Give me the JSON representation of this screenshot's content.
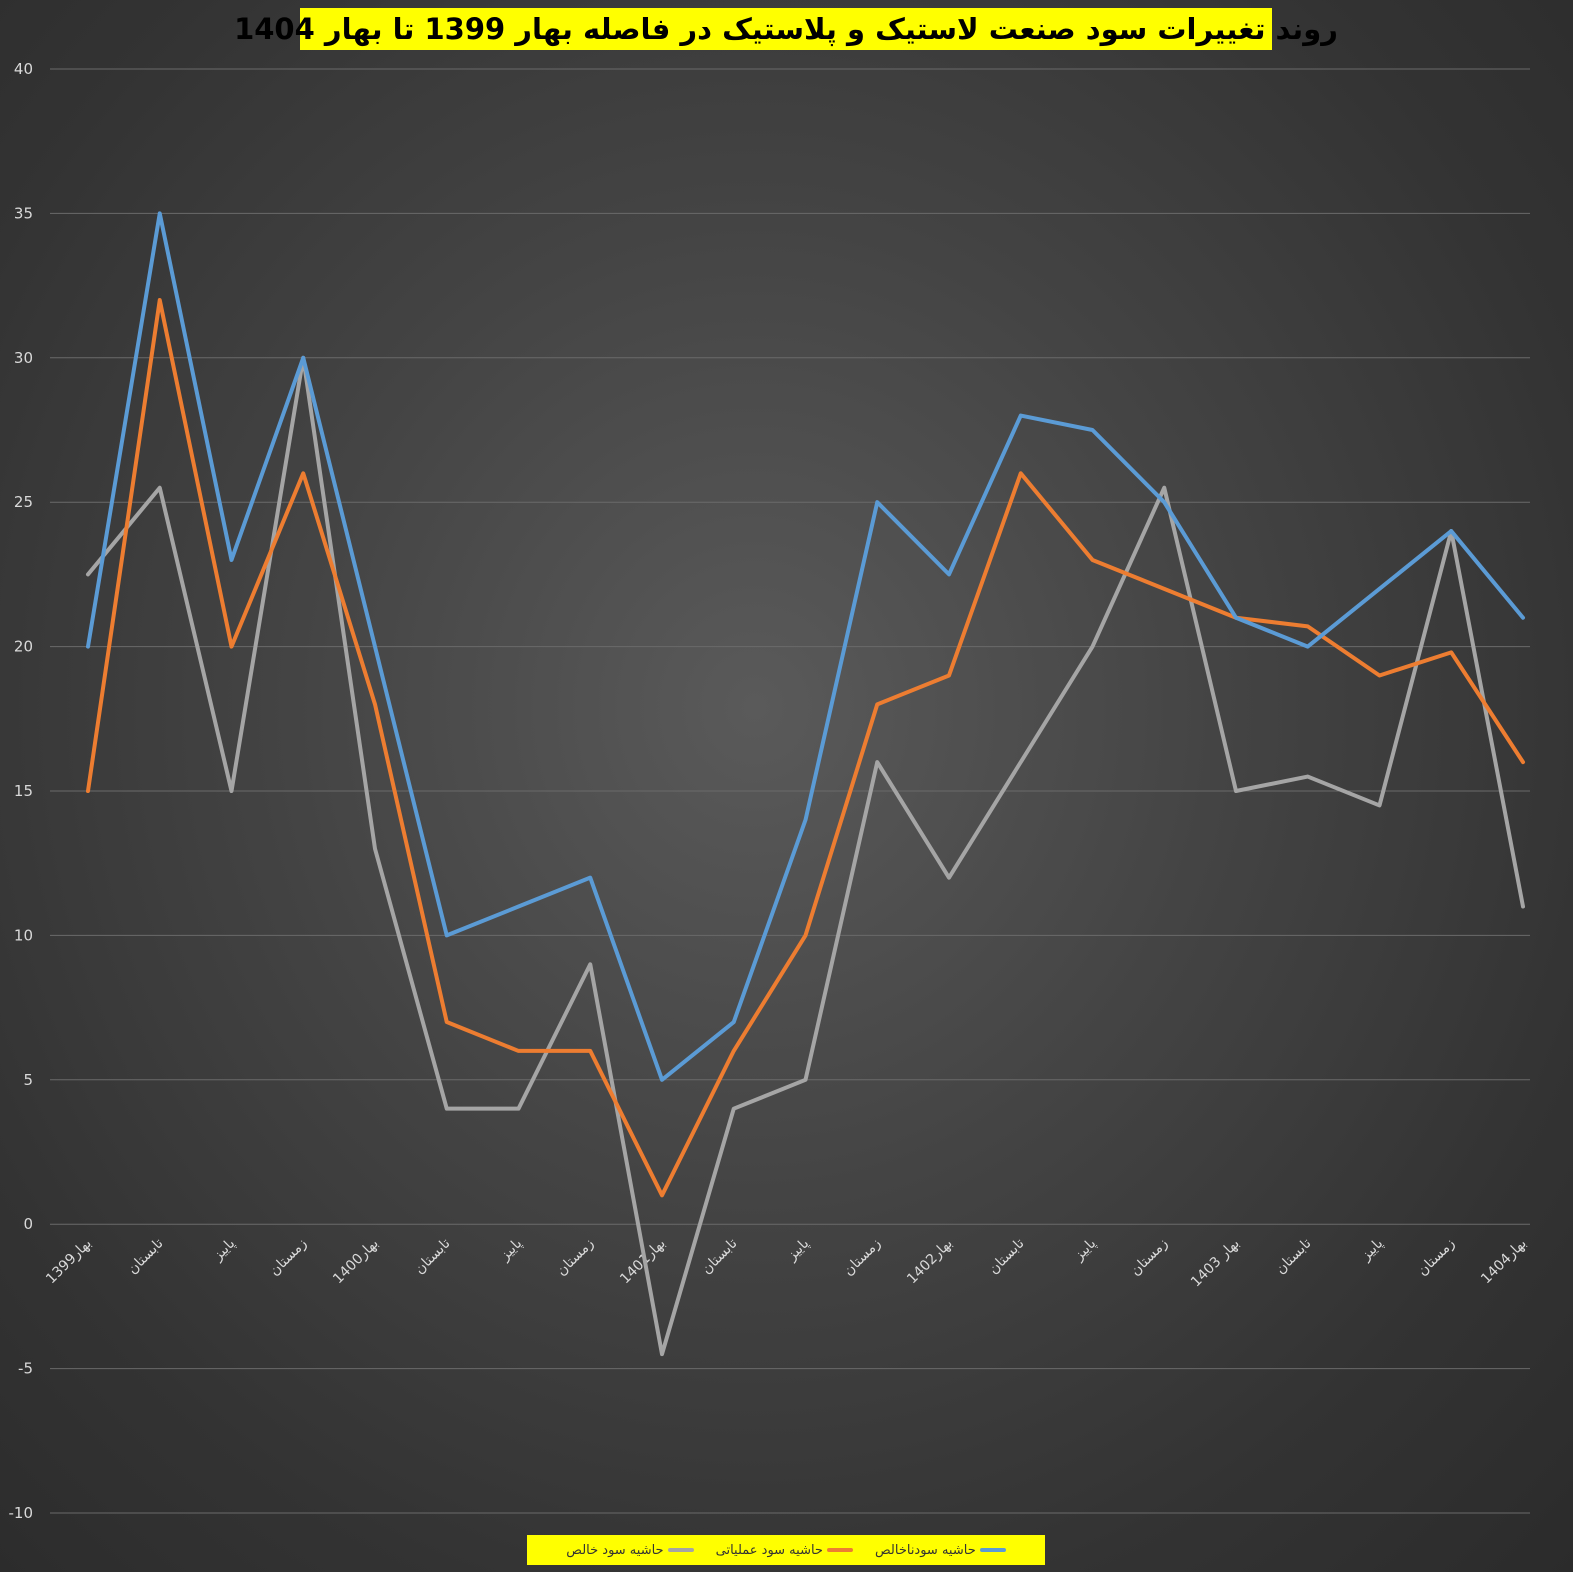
{
  "chart_data": {
    "type": "line",
    "title": "روند تغییرات سود صنعت لاستیک و پلاستیک در فاصله بهار 1399 تا بهار 1404",
    "xlabel": "",
    "ylabel": "",
    "ylim": [
      -10,
      40
    ],
    "yticks": [
      -10,
      -5,
      0,
      5,
      10,
      15,
      20,
      25,
      30,
      35,
      40
    ],
    "grid": true,
    "legend_position": "bottom",
    "categories": [
      "بهار1399",
      "تابستان",
      "پاییز",
      "زمستان",
      "بهار1400",
      "تابستان",
      "پاییز",
      "زمستان",
      "بهار1401",
      "تابستان",
      "پاییز",
      "زمستان",
      "بهار1402",
      "تابستان",
      "پاییز",
      "زمستان",
      "بهار 1403",
      "تابستان",
      "پاییز",
      "زمستان",
      "بهار1404"
    ],
    "series": [
      {
        "name": "حاشیه سودناخالص",
        "color": "#5b9bd5",
        "values": [
          20,
          35,
          23,
          30,
          20,
          10,
          11,
          12,
          5,
          7,
          14,
          25,
          22.5,
          28,
          27.5,
          25,
          21,
          20,
          22,
          24,
          21
        ]
      },
      {
        "name": "حاشیه سود عملیاتی",
        "color": "#ed7d31",
        "values": [
          15,
          32,
          20,
          26,
          18,
          7,
          6,
          6,
          1,
          6,
          10,
          18,
          19,
          26,
          23,
          22,
          21,
          20.7,
          19,
          19.8,
          16
        ]
      },
      {
        "name": "حاشیه سود خالص",
        "color": "#a5a5a5",
        "values": [
          22.5,
          25.5,
          15,
          30,
          13,
          4,
          4,
          9,
          -4.5,
          4,
          5,
          16,
          12,
          16,
          20,
          25.5,
          15,
          15.5,
          14.5,
          24,
          11
        ]
      }
    ]
  }
}
